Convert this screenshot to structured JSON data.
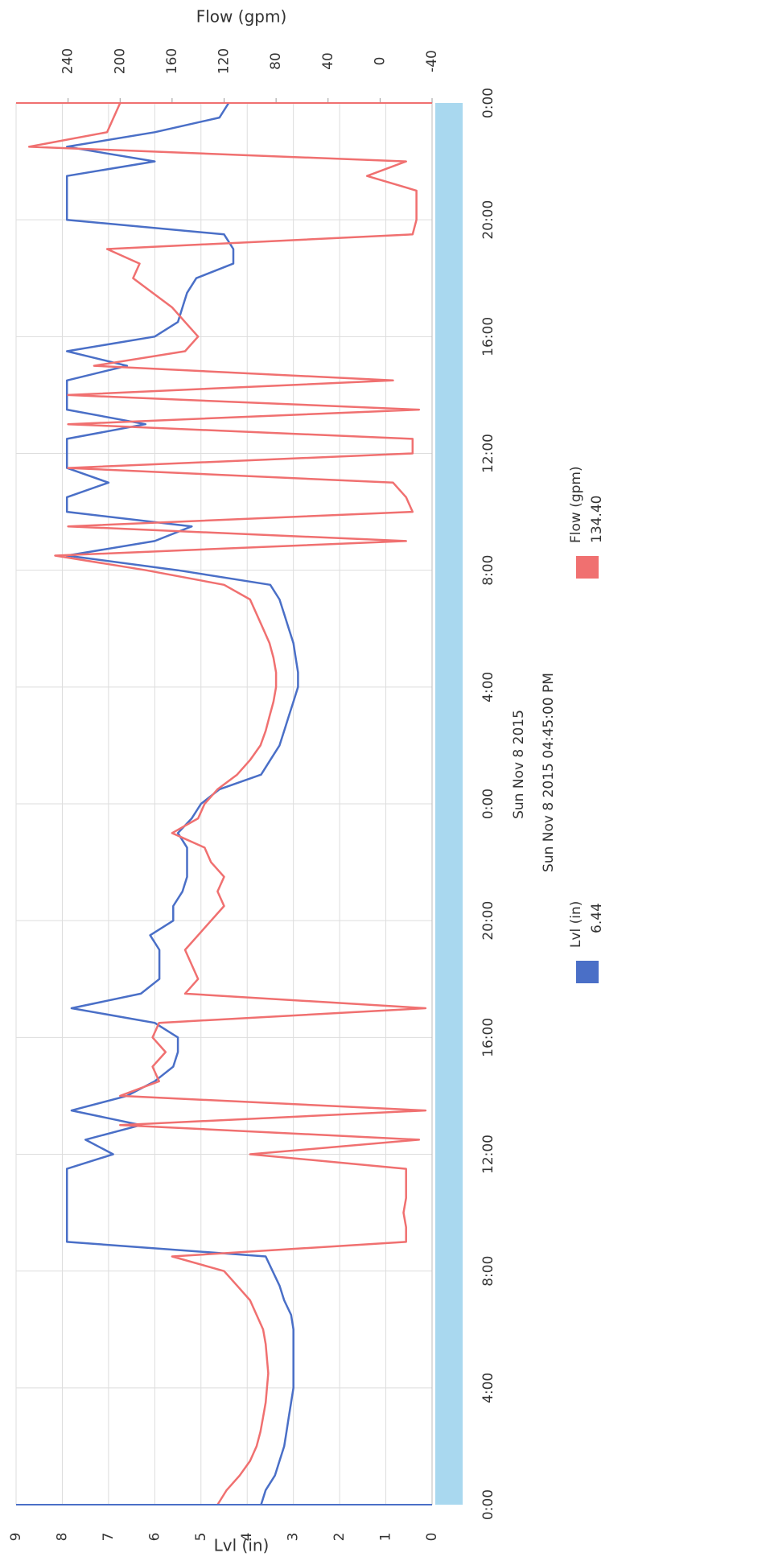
{
  "chart_data": {
    "type": "line",
    "x_label": "Sun Nov 8 2015",
    "y_label": "Lvl (in)",
    "y2_label": "Flow (gpm)",
    "readout": {
      "time": "Sun Nov 8 2015 04:45:00 PM",
      "labels": [
        "6.44",
        "134.40"
      ]
    },
    "grid": true,
    "xlim": [
      0,
      48
    ],
    "xticks": [
      {
        "value": 0,
        "label": "0:00"
      },
      {
        "value": 4,
        "label": "4:00"
      },
      {
        "value": 8,
        "label": "8:00"
      },
      {
        "value": 12,
        "label": "12:00"
      },
      {
        "value": 16,
        "label": "16:00"
      },
      {
        "value": 20,
        "label": "20:00"
      },
      {
        "value": 24,
        "label": "0:00"
      },
      {
        "value": 28,
        "label": "4:00"
      },
      {
        "value": 32,
        "label": "8:00"
      },
      {
        "value": 36,
        "label": "12:00"
      },
      {
        "value": 40,
        "label": "16:00"
      },
      {
        "value": 44,
        "label": "20:00"
      },
      {
        "value": 48,
        "label": "0:00"
      }
    ],
    "ylim": [
      0,
      9
    ],
    "yticks": [
      0,
      1,
      2,
      3,
      4,
      5,
      6,
      7,
      8,
      9
    ],
    "y2lim": [
      -40,
      280
    ],
    "y2ticks": [
      -40,
      0,
      40,
      80,
      120,
      160,
      200,
      240
    ],
    "x": [
      0,
      0.5,
      1,
      1.5,
      2,
      2.5,
      3,
      3.5,
      4,
      4.5,
      5,
      5.5,
      6,
      6.5,
      7,
      7.5,
      8,
      8.5,
      9,
      9.5,
      10,
      10.5,
      11,
      11.5,
      12,
      12.5,
      13,
      13.5,
      14,
      14.5,
      15,
      15.5,
      16,
      16.5,
      17,
      17.5,
      18,
      18.5,
      19,
      19.5,
      20,
      20.5,
      21,
      21.5,
      22,
      22.5,
      23,
      23.5,
      24,
      24.5,
      25,
      25.5,
      26,
      26.5,
      27,
      27.5,
      28,
      28.5,
      29,
      29.5,
      30,
      30.5,
      31,
      31.5,
      32,
      32.5,
      33,
      33.5,
      34,
      34.5,
      35,
      35.5,
      36,
      36.5,
      37,
      37.5,
      38,
      38.5,
      39,
      39.5,
      40,
      40.5,
      41,
      41.5,
      42,
      42.5,
      43,
      43.5,
      44,
      44.5,
      45,
      45.5,
      46,
      46.5,
      47,
      47.5,
      48
    ],
    "series": [
      {
        "name": "Lvl (in)",
        "color": "#4a6fc7",
        "values": [
          3.7,
          3.6,
          3.4,
          3.3,
          3.2,
          3.15,
          3.1,
          3.05,
          3.0,
          3.0,
          3.0,
          3.0,
          3.0,
          3.05,
          3.2,
          3.3,
          3.45,
          3.6,
          7.9,
          7.9,
          7.9,
          7.9,
          7.9,
          7.9,
          6.9,
          7.5,
          6.3,
          7.8,
          6.6,
          6.0,
          5.6,
          5.5,
          5.5,
          6.0,
          7.8,
          6.3,
          5.9,
          5.9,
          5.9,
          6.1,
          5.6,
          5.6,
          5.4,
          5.3,
          5.3,
          5.3,
          5.5,
          5.2,
          5.0,
          4.6,
          3.7,
          3.5,
          3.3,
          3.2,
          3.1,
          3.0,
          2.9,
          2.9,
          2.95,
          3.0,
          3.1,
          3.2,
          3.3,
          3.5,
          5.5,
          7.9,
          6.0,
          5.2,
          7.9,
          7.9,
          7.0,
          7.9,
          7.9,
          7.9,
          6.2,
          7.9,
          7.9,
          7.9,
          6.6,
          7.9,
          6.0,
          5.5,
          5.4,
          5.3,
          5.1,
          4.3,
          4.3,
          4.5,
          7.9,
          7.9,
          7.9,
          7.9,
          6.0,
          7.9,
          6.0,
          4.6,
          4.4
        ]
      },
      {
        "name": "Flow (gpm)",
        "color": "#f07070",
        "axis": "y2",
        "values": [
          125,
          118,
          108,
          100,
          95,
          92,
          90,
          88,
          87,
          86,
          87,
          88,
          90,
          95,
          100,
          110,
          120,
          160,
          -20,
          -20,
          -18,
          -20,
          -20,
          -20,
          100,
          -30,
          200,
          -35,
          200,
          170,
          175,
          165,
          175,
          170,
          -35,
          150,
          140,
          145,
          150,
          140,
          130,
          120,
          125,
          120,
          130,
          135,
          160,
          140,
          135,
          125,
          110,
          100,
          92,
          88,
          85,
          82,
          80,
          80,
          82,
          85,
          90,
          95,
          100,
          120,
          180,
          250,
          -20,
          240,
          -25,
          -20,
          -10,
          240,
          -25,
          -25,
          240,
          -30,
          240,
          -10,
          220,
          150,
          140,
          150,
          160,
          175,
          190,
          185,
          210,
          -25,
          -28,
          -28,
          -28,
          10,
          -20,
          270,
          210,
          205,
          200
        ]
      }
    ]
  }
}
